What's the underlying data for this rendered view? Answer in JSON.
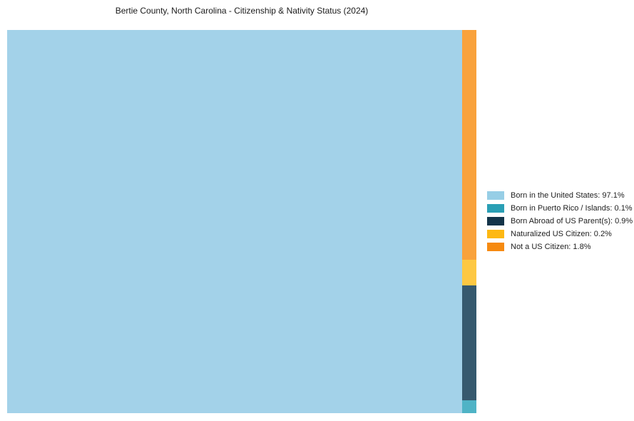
{
  "chart_data": {
    "type": "treemap",
    "title": "Bertie County, North Carolina - Citizenship & Nativity Status (2024)",
    "legend_position": "right",
    "grid": false,
    "segments": [
      {
        "label": "Born in the United States",
        "value": 97.1,
        "legend_color": "#97CEE6",
        "block_color": "#A3D2E9"
      },
      {
        "label": "Born in Puerto Rico / Islands",
        "value": 0.1,
        "legend_color": "#2A9FB5",
        "block_color": "#4FB3C6"
      },
      {
        "label": "Born Abroad of US Parent(s)",
        "value": 0.9,
        "legend_color": "#143449",
        "block_color": "#36596E"
      },
      {
        "label": "Naturalized US Citizen",
        "value": 0.2,
        "legend_color": "#FDB813",
        "block_color": "#FDC843"
      },
      {
        "label": "Not a US Citizen",
        "value": 1.8,
        "legend_color": "#F68A10",
        "block_color": "#F9A23C"
      }
    ],
    "right_column_top_to_bottom": [
      "Not a US Citizen",
      "Naturalized US Citizen",
      "Born Abroad of US Parent(s)",
      "Born in Puerto Rico / Islands"
    ],
    "value_suffix": "%",
    "label_value_separator": ": "
  }
}
